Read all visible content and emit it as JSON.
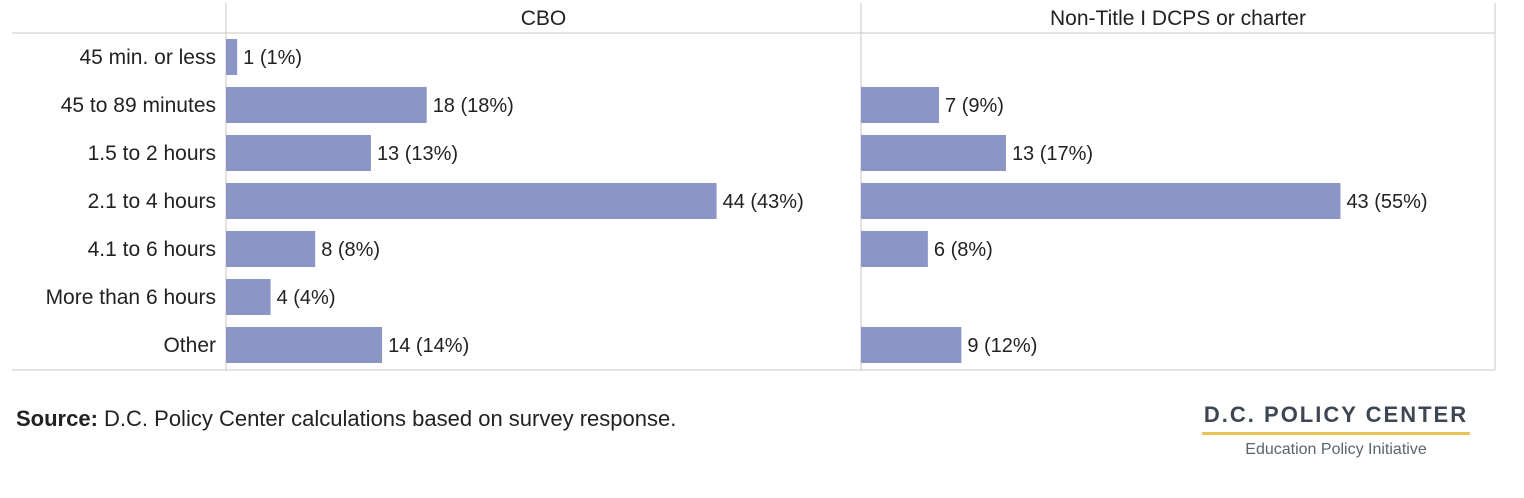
{
  "chart_data": {
    "type": "bar",
    "orientation": "horizontal",
    "categories": [
      "45 min. or less",
      "45 to 89 minutes",
      "1.5 to 2 hours",
      "2.1 to 4 hours",
      "4.1 to 6 hours",
      "More than 6 hours",
      "Other"
    ],
    "series": [
      {
        "name": "CBO",
        "values": [
          1,
          18,
          13,
          44,
          8,
          4,
          14
        ],
        "labels": [
          "1 (1%)",
          "18 (18%)",
          "13 (13%)",
          "44 (43%)",
          "8 (8%)",
          "4 (4%)",
          "14 (14%)"
        ]
      },
      {
        "name": "Non-Title I DCPS or charter",
        "values": [
          null,
          7,
          13,
          43,
          6,
          null,
          9
        ],
        "labels": [
          "",
          "7 (9%)",
          "13 (17%)",
          "43 (55%)",
          "6 (8%)",
          "",
          "9 (12%)"
        ]
      }
    ],
    "bar_color": "#8c96c6",
    "grid_color": "#c8c8c8"
  },
  "source": {
    "label": "Source:",
    "text": " D.C. Policy Center calculations based on survey response."
  },
  "logo": {
    "name": "D.C. POLICY CENTER",
    "subtitle": "Education Policy Initiative"
  }
}
